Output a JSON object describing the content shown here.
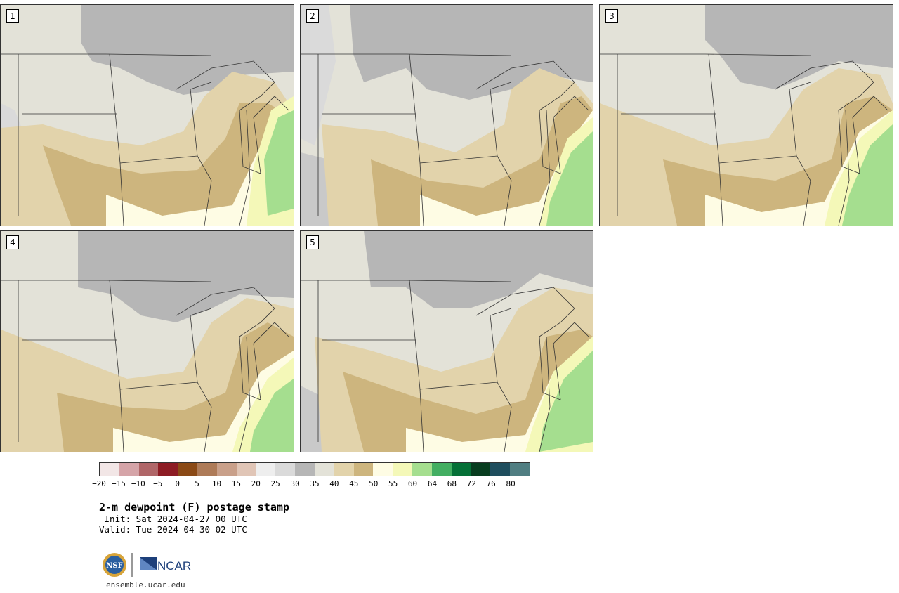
{
  "panels": [
    {
      "label": "1"
    },
    {
      "label": "2"
    },
    {
      "label": "3"
    },
    {
      "label": "4"
    },
    {
      "label": "5"
    }
  ],
  "colorbar": {
    "ticks": [
      "−20",
      "−15",
      "−10",
      "−5",
      "0",
      "5",
      "10",
      "15",
      "20",
      "25",
      "30",
      "35",
      "40",
      "45",
      "50",
      "55",
      "60",
      "64",
      "68",
      "72",
      "76",
      "80"
    ],
    "colors": [
      "#f2e6e6",
      "#d5a4a8",
      "#b06668",
      "#8d1c24",
      "#8b4a16",
      "#ae7b58",
      "#c9a08a",
      "#e0c5b6",
      "#eeeeee",
      "#dadada",
      "#b6b6b6",
      "#e3e2d8",
      "#e2d3ab",
      "#cdb57e",
      "#fefce4",
      "#f4f8b8",
      "#a5de8f",
      "#43ae62",
      "#057037",
      "#083d20",
      "#1f4e5e",
      "#507e82"
    ]
  },
  "map_colors": {
    "background": "#e3e2d8",
    "dry_gray": "#b6b6b6",
    "light_gray": "#dadada",
    "tan": "#e2d3ab",
    "dark_tan": "#cdb57e",
    "cream": "#fefce4",
    "yellow": "#f4f8b8",
    "green": "#a5de8f",
    "dark_green": "#43ae62",
    "borders": "#333333"
  },
  "title": "2-m dewpoint (F) postage stamp",
  "init": " Init: Sat 2024-04-27 00 UTC",
  "valid": "Valid: Tue 2024-04-30 02 UTC",
  "logos": {
    "nsf": "NSF",
    "ncar": "NCAR"
  },
  "url": "ensemble.ucar.edu"
}
